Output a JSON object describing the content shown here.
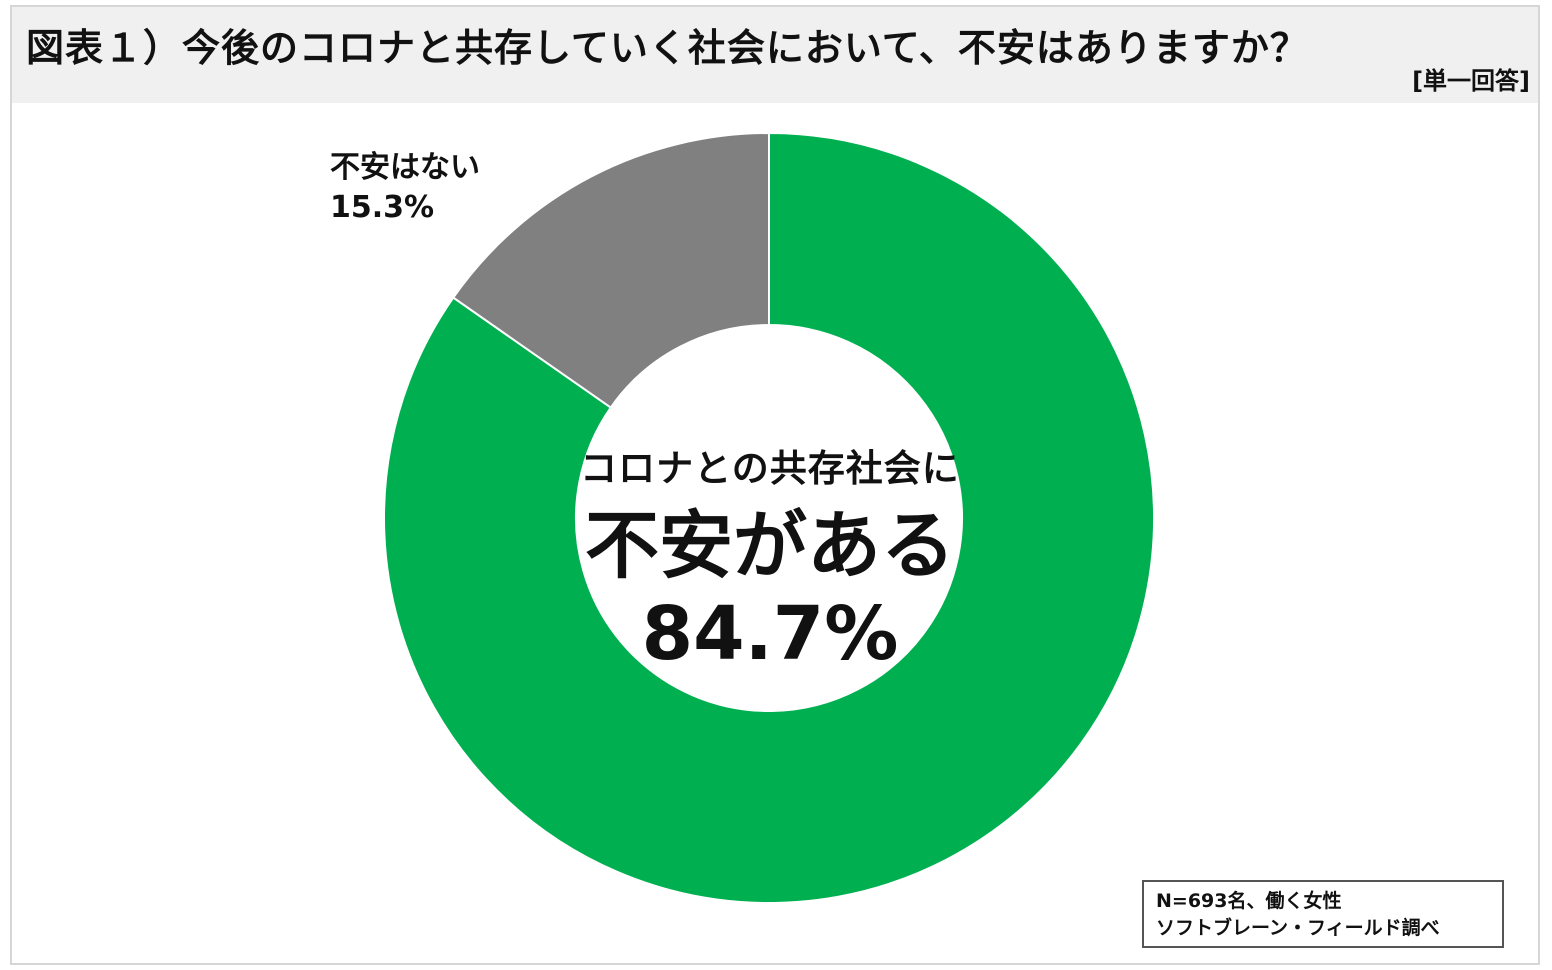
{
  "header": {
    "title": "図表１）今後のコロナと共存していく社会において、不安はありますか？",
    "answer_type": "[単一回答]"
  },
  "chart_data": {
    "type": "pie",
    "style": "donut",
    "categories": [
      "不安がある",
      "不安はない"
    ],
    "values": [
      84.7,
      15.3
    ],
    "unit": "%",
    "colors": [
      "#00b050",
      "#808080"
    ],
    "start": "12 o'clock, clockwise",
    "labels": {
      "outside_slice": {
        "name": "不安はない",
        "value": "15.3%"
      },
      "center": {
        "line1": "コロナとの共存社会に",
        "line2": "不安がある",
        "line3": "84.7%"
      }
    }
  },
  "note": {
    "line1": "N=693名、働く女性",
    "line2": "ソフトブレーン・フィールド調べ"
  }
}
